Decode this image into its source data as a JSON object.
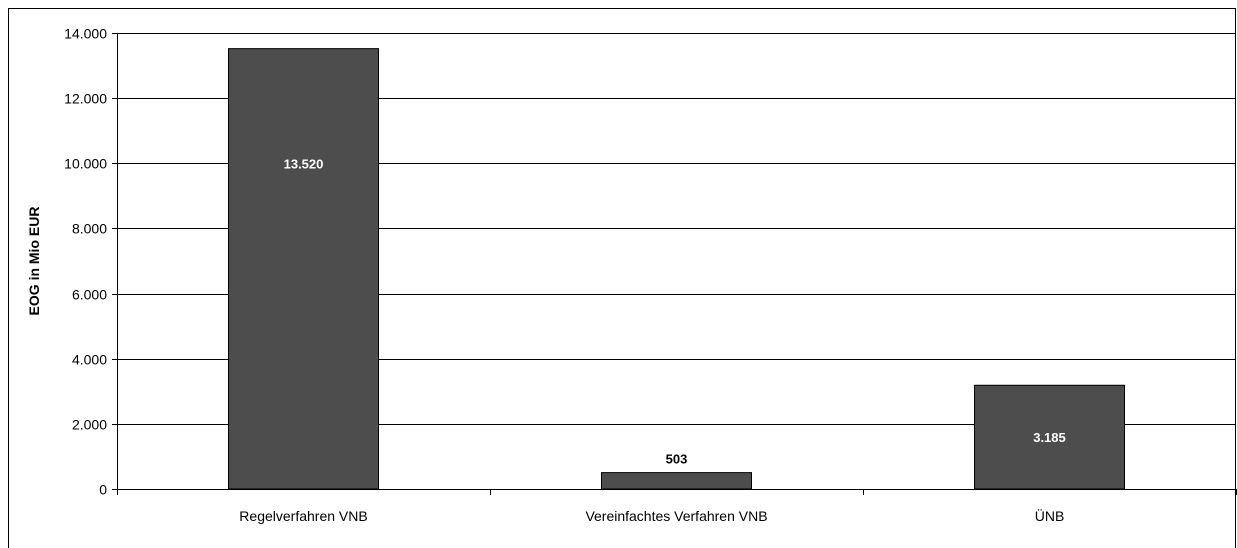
{
  "chart_data": {
    "type": "bar",
    "categories": [
      "Regelverfahren VNB",
      "Vereinfachtes Verfahren VNB",
      "ÜNB"
    ],
    "values": [
      13520,
      503,
      3185
    ],
    "value_labels": [
      "13.520",
      "503",
      "3.185"
    ],
    "value_label_positions": [
      "inside",
      "above",
      "inside"
    ],
    "ylabel": "EOG in Mio EUR",
    "xlabel": "",
    "ylim": [
      0,
      14000
    ],
    "yticks": [
      0,
      2000,
      4000,
      6000,
      8000,
      10000,
      12000,
      14000
    ],
    "ytick_labels": [
      "0",
      "2.000",
      "4.000",
      "6.000",
      "8.000",
      "10.000",
      "12.000",
      "14.000"
    ],
    "grid": true,
    "bar_color": "#4d4d4d"
  }
}
